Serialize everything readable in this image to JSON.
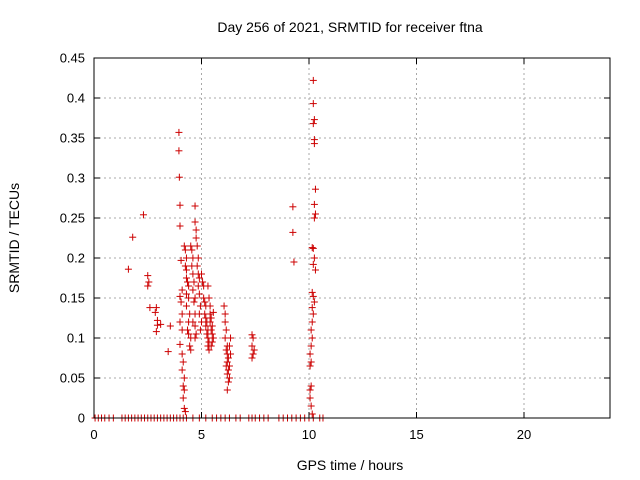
{
  "chart_data": {
    "type": "scatter",
    "title": "Day 256 of 2021, SRMTID for receiver ftna",
    "xlabel": "GPS time / hours",
    "ylabel": "SRMTID / TECUs",
    "xlim": [
      0,
      24
    ],
    "ylim": [
      0,
      0.45
    ],
    "xticks": [
      0,
      5,
      10,
      15,
      20
    ],
    "yticks": [
      0,
      0.05,
      0.1,
      0.15,
      0.2,
      0.25,
      0.3,
      0.35,
      0.4,
      0.45
    ],
    "xtick_labels": [
      "0",
      "5",
      "10",
      "15",
      "20"
    ],
    "ytick_labels": [
      "0",
      "0.05",
      "0.1",
      "0.15",
      "0.2",
      "0.25",
      "0.3",
      "0.35",
      "0.4",
      "0.45"
    ],
    "grid": true,
    "marker": "+",
    "color": "#cc0000",
    "series": [
      {
        "points": [
          [
            0.05,
            0
          ],
          [
            0.2,
            0
          ],
          [
            0.35,
            0
          ],
          [
            0.5,
            0
          ],
          [
            0.7,
            0
          ],
          [
            0.9,
            0
          ],
          [
            1.3,
            0
          ],
          [
            1.45,
            0
          ],
          [
            1.6,
            0
          ],
          [
            1.75,
            0
          ],
          [
            1.9,
            0
          ],
          [
            2.05,
            0
          ],
          [
            2.2,
            0
          ],
          [
            2.35,
            0
          ],
          [
            2.5,
            0
          ],
          [
            2.65,
            0
          ],
          [
            2.8,
            0
          ],
          [
            2.95,
            0
          ],
          [
            3.1,
            0
          ],
          [
            3.25,
            0
          ],
          [
            3.4,
            0
          ],
          [
            3.55,
            0
          ],
          [
            3.7,
            0
          ],
          [
            3.85,
            0
          ],
          [
            4.0,
            0
          ],
          [
            4.15,
            0
          ],
          [
            4.3,
            0
          ],
          [
            4.6,
            0
          ],
          [
            4.9,
            0
          ],
          [
            5.2,
            0
          ],
          [
            5.5,
            0
          ],
          [
            5.7,
            0
          ],
          [
            5.9,
            0
          ],
          [
            6.1,
            0
          ],
          [
            6.3,
            0
          ],
          [
            6.6,
            0
          ],
          [
            6.8,
            0
          ],
          [
            7.2,
            0
          ],
          [
            7.35,
            0
          ],
          [
            7.5,
            0
          ],
          [
            7.7,
            0
          ],
          [
            7.9,
            0
          ],
          [
            8.1,
            0
          ],
          [
            8.6,
            0
          ],
          [
            8.8,
            0
          ],
          [
            9.0,
            0
          ],
          [
            9.2,
            0
          ],
          [
            9.4,
            0
          ],
          [
            9.6,
            0
          ],
          [
            9.8,
            0
          ],
          [
            10.0,
            0
          ],
          [
            10.2,
            0
          ],
          [
            10.5,
            0
          ],
          [
            10.65,
            0
          ],
          [
            1.6,
            0.186
          ],
          [
            1.8,
            0.226
          ],
          [
            2.3,
            0.254
          ],
          [
            2.5,
            0.178
          ],
          [
            2.55,
            0.17
          ],
          [
            2.5,
            0.165
          ],
          [
            2.6,
            0.138
          ],
          [
            2.85,
            0.132
          ],
          [
            2.9,
            0.138
          ],
          [
            2.95,
            0.122
          ],
          [
            2.95,
            0.116
          ],
          [
            2.9,
            0.108
          ],
          [
            3.1,
            0.117
          ],
          [
            3.45,
            0.083
          ],
          [
            3.55,
            0.115
          ],
          [
            3.95,
            0.357
          ],
          [
            3.95,
            0.334
          ],
          [
            3.97,
            0.301
          ],
          [
            4.0,
            0.266
          ],
          [
            4.0,
            0.24
          ],
          [
            4.05,
            0.197
          ],
          [
            4.1,
            0.16
          ],
          [
            4.0,
            0.152
          ],
          [
            4.05,
            0.145
          ],
          [
            4.1,
            0.13
          ],
          [
            4.0,
            0.12
          ],
          [
            4.1,
            0.11
          ],
          [
            4.0,
            0.092
          ],
          [
            4.1,
            0.08
          ],
          [
            4.15,
            0.07
          ],
          [
            4.1,
            0.06
          ],
          [
            4.2,
            0.05
          ],
          [
            4.15,
            0.04
          ],
          [
            4.2,
            0.035
          ],
          [
            4.15,
            0.025
          ],
          [
            4.2,
            0.012
          ],
          [
            4.25,
            0.008
          ],
          [
            4.2,
            0.215
          ],
          [
            4.25,
            0.21
          ],
          [
            4.3,
            0.2
          ],
          [
            4.25,
            0.19
          ],
          [
            4.3,
            0.185
          ],
          [
            4.3,
            0.175
          ],
          [
            4.35,
            0.17
          ],
          [
            4.4,
            0.165
          ],
          [
            4.3,
            0.155
          ],
          [
            4.4,
            0.15
          ],
          [
            4.3,
            0.14
          ],
          [
            4.45,
            0.13
          ],
          [
            4.4,
            0.12
          ],
          [
            4.35,
            0.11
          ],
          [
            4.4,
            0.105
          ],
          [
            4.5,
            0.1
          ],
          [
            4.45,
            0.09
          ],
          [
            4.5,
            0.085
          ],
          [
            4.5,
            0.215
          ],
          [
            4.55,
            0.21
          ],
          [
            4.6,
            0.2
          ],
          [
            4.55,
            0.19
          ],
          [
            4.6,
            0.18
          ],
          [
            4.65,
            0.17
          ],
          [
            4.6,
            0.16
          ],
          [
            4.7,
            0.15
          ],
          [
            4.65,
            0.145
          ],
          [
            4.7,
            0.13
          ],
          [
            4.6,
            0.12
          ],
          [
            4.7,
            0.115
          ],
          [
            4.75,
            0.105
          ],
          [
            4.7,
            0.1
          ],
          [
            4.7,
            0.265
          ],
          [
            4.7,
            0.245
          ],
          [
            4.75,
            0.235
          ],
          [
            4.75,
            0.225
          ],
          [
            4.8,
            0.215
          ],
          [
            4.85,
            0.2
          ],
          [
            4.8,
            0.19
          ],
          [
            4.85,
            0.18
          ],
          [
            4.9,
            0.175
          ],
          [
            4.85,
            0.165
          ],
          [
            4.9,
            0.155
          ],
          [
            4.95,
            0.14
          ],
          [
            4.9,
            0.13
          ],
          [
            5.0,
            0.12
          ],
          [
            4.95,
            0.11
          ],
          [
            5.0,
            0.18
          ],
          [
            5.05,
            0.17
          ],
          [
            5.1,
            0.165
          ],
          [
            5.1,
            0.15
          ],
          [
            5.15,
            0.145
          ],
          [
            5.2,
            0.14
          ],
          [
            5.15,
            0.13
          ],
          [
            5.2,
            0.125
          ],
          [
            5.25,
            0.12
          ],
          [
            5.2,
            0.115
          ],
          [
            5.3,
            0.11
          ],
          [
            5.25,
            0.105
          ],
          [
            5.3,
            0.1
          ],
          [
            5.35,
            0.095
          ],
          [
            5.3,
            0.09
          ],
          [
            5.35,
            0.085
          ],
          [
            5.3,
            0.165
          ],
          [
            5.35,
            0.15
          ],
          [
            5.4,
            0.14
          ],
          [
            5.4,
            0.13
          ],
          [
            5.45,
            0.125
          ],
          [
            5.4,
            0.12
          ],
          [
            5.5,
            0.115
          ],
          [
            5.45,
            0.11
          ],
          [
            5.5,
            0.105
          ],
          [
            5.55,
            0.1
          ],
          [
            5.5,
            0.095
          ],
          [
            5.45,
            0.09
          ],
          [
            5.55,
            0.132
          ],
          [
            6.05,
            0.14
          ],
          [
            6.1,
            0.13
          ],
          [
            6.1,
            0.12
          ],
          [
            6.15,
            0.11
          ],
          [
            6.1,
            0.1
          ],
          [
            6.2,
            0.09
          ],
          [
            6.15,
            0.085
          ],
          [
            6.2,
            0.08
          ],
          [
            6.25,
            0.075
          ],
          [
            6.2,
            0.07
          ],
          [
            6.15,
            0.065
          ],
          [
            6.25,
            0.06
          ],
          [
            6.2,
            0.055
          ],
          [
            6.3,
            0.05
          ],
          [
            6.25,
            0.045
          ],
          [
            6.2,
            0.035
          ],
          [
            6.35,
            0.1
          ],
          [
            6.3,
            0.09
          ],
          [
            6.35,
            0.08
          ],
          [
            6.3,
            0.065
          ],
          [
            7.35,
            0.104
          ],
          [
            7.4,
            0.1
          ],
          [
            7.35,
            0.09
          ],
          [
            7.45,
            0.085
          ],
          [
            7.4,
            0.08
          ],
          [
            7.35,
            0.075
          ],
          [
            9.25,
            0.264
          ],
          [
            9.25,
            0.232
          ],
          [
            9.3,
            0.195
          ],
          [
            10.2,
            0.422
          ],
          [
            10.2,
            0.393
          ],
          [
            10.25,
            0.373
          ],
          [
            10.2,
            0.368
          ],
          [
            10.25,
            0.348
          ],
          [
            10.25,
            0.343
          ],
          [
            10.3,
            0.286
          ],
          [
            10.25,
            0.267
          ],
          [
            10.3,
            0.255
          ],
          [
            10.25,
            0.25
          ],
          [
            10.15,
            0.213
          ],
          [
            10.2,
            0.212
          ],
          [
            10.25,
            0.2
          ],
          [
            10.2,
            0.192
          ],
          [
            10.3,
            0.185
          ],
          [
            10.15,
            0.157
          ],
          [
            10.2,
            0.152
          ],
          [
            10.25,
            0.145
          ],
          [
            10.15,
            0.138
          ],
          [
            10.2,
            0.13
          ],
          [
            10.15,
            0.12
          ],
          [
            10.1,
            0.11
          ],
          [
            10.15,
            0.1
          ],
          [
            10.1,
            0.09
          ],
          [
            10.05,
            0.08
          ],
          [
            10.1,
            0.07
          ],
          [
            10.05,
            0.065
          ],
          [
            10.1,
            0.04
          ],
          [
            10.05,
            0.035
          ],
          [
            10.05,
            0.025
          ],
          [
            10.1,
            0.015
          ],
          [
            10.15,
            0.005
          ]
        ]
      }
    ]
  }
}
